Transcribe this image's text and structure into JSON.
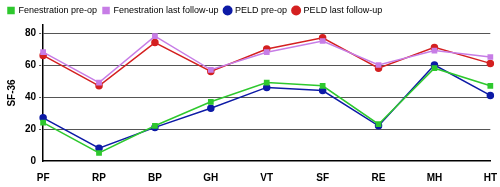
{
  "chart_data": {
    "type": "line",
    "categories": [
      "PF",
      "RP",
      "BP",
      "GH",
      "VT",
      "SF",
      "RE",
      "MH",
      "HT"
    ],
    "y_label": "SF-36",
    "ylim": [
      0,
      85
    ],
    "yticks": [
      0,
      20,
      40,
      60,
      80
    ],
    "grid": true,
    "legend": "top",
    "series": [
      {
        "name": "Fenestration pre-op",
        "color": "#2ec82e",
        "marker": "square",
        "values": [
          24,
          5,
          22,
          37,
          49,
          47,
          23,
          58,
          47
        ]
      },
      {
        "name": "Fenestration last follow-up",
        "color": "#c77de6",
        "marker": "square",
        "values": [
          68,
          49,
          78,
          57,
          68,
          75,
          60,
          69,
          65
        ]
      },
      {
        "name": "PELD pre-op",
        "color": "#0d1aa6",
        "marker": "circle",
        "values": [
          27,
          8,
          21,
          33,
          46,
          44,
          22,
          60,
          41
        ]
      },
      {
        "name": "PELD last follow-up",
        "color": "#d42020",
        "marker": "circle",
        "values": [
          66,
          47,
          74,
          56,
          70,
          77,
          58,
          71,
          61
        ]
      }
    ]
  }
}
